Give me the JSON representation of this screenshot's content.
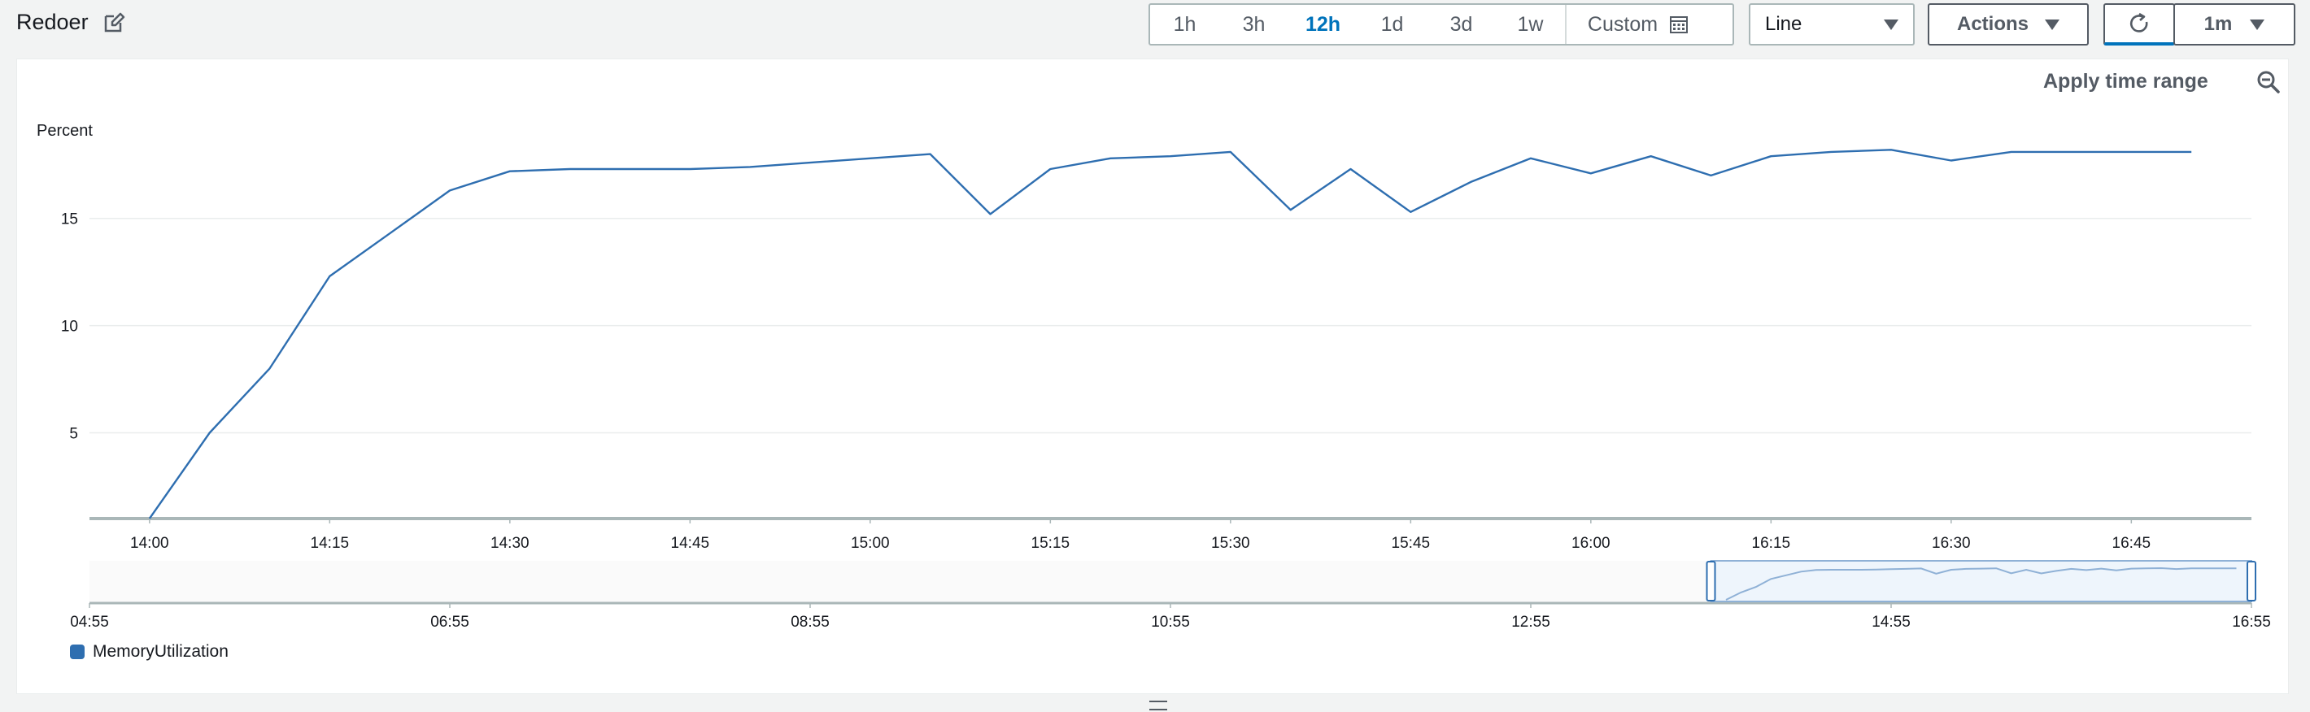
{
  "header": {
    "title": "Redoer",
    "time_ranges": [
      "1h",
      "3h",
      "12h",
      "1d",
      "3d",
      "1w"
    ],
    "active_range": "12h",
    "custom_label": "Custom",
    "chart_type_select": "Line",
    "actions_label": "Actions",
    "refresh_interval": "1m"
  },
  "panel": {
    "apply_time_range_label": "Apply time range"
  },
  "colors": {
    "series": "#2e6eb0",
    "accent": "#0073bb",
    "selection_fill": "#eef5fc"
  },
  "chart_data": {
    "type": "line",
    "ylabel": "Percent",
    "ylim": [
      1,
      19.5
    ],
    "yticks": [
      5,
      10,
      15
    ],
    "x_tick_labels": [
      "14:00",
      "14:15",
      "14:30",
      "14:45",
      "15:00",
      "15:15",
      "15:30",
      "15:45",
      "16:00",
      "16:15",
      "16:30",
      "16:45"
    ],
    "x_range": [
      "13:55",
      "16:55"
    ],
    "series": [
      {
        "name": "MemoryUtilization",
        "x": [
          "14:00",
          "14:05",
          "14:10",
          "14:15",
          "14:20",
          "14:25",
          "14:30",
          "14:35",
          "14:40",
          "14:45",
          "14:50",
          "14:55",
          "15:00",
          "15:05",
          "15:10",
          "15:15",
          "15:20",
          "15:25",
          "15:30",
          "15:35",
          "15:40",
          "15:45",
          "15:50",
          "15:55",
          "16:00",
          "16:05",
          "16:10",
          "16:15",
          "16:20",
          "16:25",
          "16:30",
          "16:35",
          "16:40",
          "16:45",
          "16:50"
        ],
        "values": [
          1.0,
          5.0,
          8.0,
          12.3,
          14.3,
          16.3,
          17.2,
          17.3,
          17.3,
          17.3,
          17.4,
          17.6,
          17.8,
          18.0,
          15.2,
          17.3,
          17.8,
          17.9,
          18.1,
          15.4,
          17.3,
          15.3,
          16.7,
          17.8,
          17.1,
          17.9,
          17.0,
          17.9,
          18.1,
          18.2,
          17.7,
          18.1,
          18.1,
          18.1,
          18.1
        ]
      }
    ],
    "overview": {
      "x_tick_labels": [
        "04:55",
        "06:55",
        "08:55",
        "10:55",
        "12:55",
        "14:55",
        "16:55"
      ],
      "selected_range": [
        "13:55",
        "16:55"
      ]
    },
    "legend": [
      "MemoryUtilization"
    ],
    "legend_position": "bottom-left",
    "grid": true
  }
}
